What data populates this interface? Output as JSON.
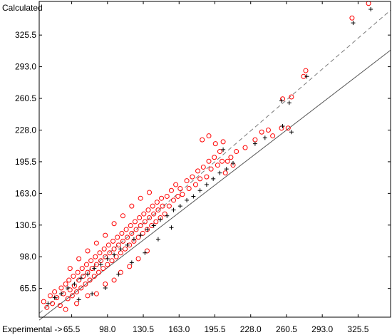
{
  "chart_data": {
    "type": "scatter",
    "xlabel": "Experimental ->",
    "ylabel": "Calculated",
    "xlim": [
      36.0,
      355.0
    ],
    "ylim": [
      36.0,
      360.0
    ],
    "xticks": [
      "65.5",
      "98.0",
      "130.5",
      "163.0",
      "195.5",
      "228.0",
      "260.5",
      "293.0",
      "325.5"
    ],
    "yticks": [
      "65.5",
      "98.0",
      "130.5",
      "163.0",
      "195.5",
      "228.0",
      "260.5",
      "293.0",
      "325.5"
    ],
    "grid": false,
    "reference_lines": [
      {
        "name": "identity",
        "style": "dashed",
        "points": [
          [
            36.0,
            40.0
          ],
          [
            355.0,
            351.0
          ]
        ]
      },
      {
        "name": "fit",
        "style": "solid",
        "points": [
          [
            36.0,
            33.0
          ],
          [
            355.0,
            310.0
          ]
        ]
      }
    ],
    "series": [
      {
        "marker": "circle",
        "color": "#ff0000",
        "points": [
          [
            40,
            52
          ],
          [
            43,
            46
          ],
          [
            46,
            58
          ],
          [
            48,
            50
          ],
          [
            50,
            62
          ],
          [
            52,
            56
          ],
          [
            55,
            48
          ],
          [
            56,
            66
          ],
          [
            58,
            60
          ],
          [
            60,
            70
          ],
          [
            62,
            55
          ],
          [
            63,
            74
          ],
          [
            64,
            64
          ],
          [
            66,
            58
          ],
          [
            67,
            78
          ],
          [
            68,
            68
          ],
          [
            70,
            62
          ],
          [
            71,
            82
          ],
          [
            72,
            74
          ],
          [
            74,
            66
          ],
          [
            75,
            86
          ],
          [
            76,
            78
          ],
          [
            78,
            70
          ],
          [
            79,
            90
          ],
          [
            80,
            82
          ],
          [
            82,
            74
          ],
          [
            83,
            94
          ],
          [
            84,
            86
          ],
          [
            86,
            78
          ],
          [
            87,
            98
          ],
          [
            88,
            90
          ],
          [
            90,
            82
          ],
          [
            91,
            102
          ],
          [
            92,
            94
          ],
          [
            94,
            86
          ],
          [
            95,
            106
          ],
          [
            96,
            98
          ],
          [
            98,
            90
          ],
          [
            99,
            110
          ],
          [
            100,
            102
          ],
          [
            102,
            94
          ],
          [
            103,
            114
          ],
          [
            104,
            106
          ],
          [
            106,
            98
          ],
          [
            107,
            118
          ],
          [
            108,
            110
          ],
          [
            110,
            102
          ],
          [
            111,
            122
          ],
          [
            112,
            114
          ],
          [
            114,
            106
          ],
          [
            115,
            126
          ],
          [
            116,
            118
          ],
          [
            118,
            110
          ],
          [
            119,
            130
          ],
          [
            120,
            122
          ],
          [
            122,
            114
          ],
          [
            123,
            134
          ],
          [
            124,
            126
          ],
          [
            126,
            118
          ],
          [
            127,
            138
          ],
          [
            128,
            130
          ],
          [
            130,
            122
          ],
          [
            131,
            142
          ],
          [
            132,
            134
          ],
          [
            134,
            126
          ],
          [
            135,
            146
          ],
          [
            136,
            138
          ],
          [
            138,
            130
          ],
          [
            139,
            150
          ],
          [
            140,
            142
          ],
          [
            142,
            134
          ],
          [
            143,
            154
          ],
          [
            144,
            146
          ],
          [
            146,
            138
          ],
          [
            147,
            158
          ],
          [
            148,
            150
          ],
          [
            150,
            142
          ],
          [
            152,
            160
          ],
          [
            154,
            150
          ],
          [
            156,
            166
          ],
          [
            158,
            156
          ],
          [
            160,
            172
          ],
          [
            162,
            160
          ],
          [
            164,
            168
          ],
          [
            166,
            162
          ],
          [
            170,
            176
          ],
          [
            172,
            168
          ],
          [
            175,
            180
          ],
          [
            178,
            172
          ],
          [
            180,
            186
          ],
          [
            182,
            178
          ],
          [
            185,
            190
          ],
          [
            188,
            180
          ],
          [
            190,
            196
          ],
          [
            192,
            188
          ],
          [
            195,
            200
          ],
          [
            198,
            192
          ],
          [
            200,
            206
          ],
          [
            202,
            196
          ],
          [
            205,
            184
          ],
          [
            207,
            196
          ],
          [
            210,
            200
          ],
          [
            212,
            192
          ],
          [
            215,
            206
          ],
          [
            184,
            218
          ],
          [
            190,
            222
          ],
          [
            196,
            214
          ],
          [
            203,
            216
          ],
          [
            223,
            210
          ],
          [
            232,
            218
          ],
          [
            238,
            226
          ],
          [
            244,
            228
          ],
          [
            248,
            222
          ],
          [
            256,
            230
          ],
          [
            262,
            230
          ],
          [
            257,
            260
          ],
          [
            265,
            262
          ],
          [
            276,
            283
          ],
          [
            278,
            289
          ],
          [
            320,
            343
          ],
          [
            335,
            358
          ],
          [
            60,
            44
          ],
          [
            70,
            50
          ],
          [
            80,
            58
          ],
          [
            88,
            60
          ],
          [
            96,
            70
          ],
          [
            104,
            74
          ],
          [
            110,
            82
          ],
          [
            118,
            88
          ],
          [
            126,
            96
          ],
          [
            134,
            104
          ],
          [
            64,
            86
          ],
          [
            72,
            96
          ],
          [
            80,
            104
          ],
          [
            88,
            112
          ],
          [
            96,
            120
          ],
          [
            104,
            132
          ],
          [
            112,
            140
          ],
          [
            120,
            150
          ],
          [
            128,
            158
          ],
          [
            136,
            164
          ]
        ]
      },
      {
        "marker": "plus",
        "color": "#000000",
        "points": [
          [
            44,
            50
          ],
          [
            50,
            56
          ],
          [
            56,
            60
          ],
          [
            62,
            66
          ],
          [
            68,
            70
          ],
          [
            74,
            76
          ],
          [
            80,
            80
          ],
          [
            86,
            86
          ],
          [
            92,
            90
          ],
          [
            98,
            96
          ],
          [
            104,
            100
          ],
          [
            110,
            106
          ],
          [
            116,
            110
          ],
          [
            122,
            116
          ],
          [
            128,
            120
          ],
          [
            134,
            126
          ],
          [
            140,
            130
          ],
          [
            146,
            136
          ],
          [
            152,
            140
          ],
          [
            158,
            146
          ],
          [
            164,
            150
          ],
          [
            170,
            156
          ],
          [
            176,
            160
          ],
          [
            182,
            166
          ],
          [
            188,
            172
          ],
          [
            194,
            178
          ],
          [
            200,
            184
          ],
          [
            206,
            188
          ],
          [
            212,
            194
          ],
          [
            72,
            54
          ],
          [
            84,
            60
          ],
          [
            96,
            66
          ],
          [
            108,
            80
          ],
          [
            120,
            92
          ],
          [
            132,
            102
          ],
          [
            144,
            116
          ],
          [
            156,
            128
          ],
          [
            203,
            208
          ],
          [
            232,
            214
          ],
          [
            241,
            220
          ],
          [
            257,
            232
          ],
          [
            265,
            226
          ],
          [
            256,
            258
          ],
          [
            263,
            256
          ],
          [
            279,
            283
          ],
          [
            321,
            338
          ],
          [
            337,
            352
          ]
        ]
      }
    ]
  }
}
